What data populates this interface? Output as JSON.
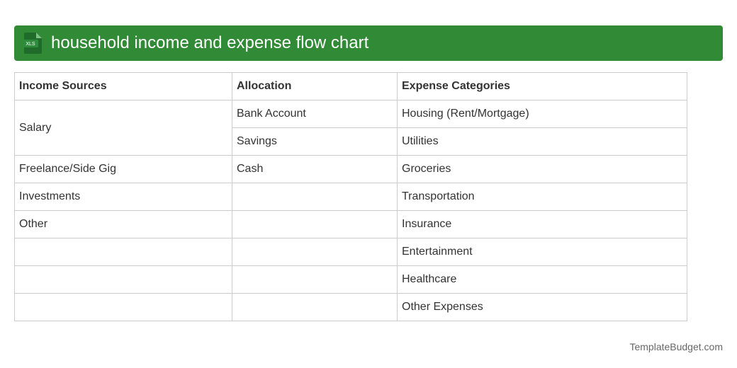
{
  "header": {
    "title": "household income and expense flow chart",
    "icon": "XLS"
  },
  "table": {
    "headers": [
      "Income Sources",
      "Allocation",
      "Expense Categories"
    ],
    "rows": [
      [
        "Salary",
        "Bank Account",
        "Housing (Rent/Mortgage)"
      ],
      [
        null,
        "Savings",
        "Utilities"
      ],
      [
        "Freelance/Side Gig",
        "Cash",
        "Groceries"
      ],
      [
        "Investments",
        null,
        "Transportation"
      ],
      [
        "Other",
        null,
        "Insurance"
      ],
      [
        null,
        null,
        "Entertainment"
      ],
      [
        null,
        null,
        "Healthcare"
      ],
      [
        null,
        null,
        "Other Expenses"
      ]
    ]
  },
  "footer": {
    "brand": "TemplateBudget.com"
  }
}
